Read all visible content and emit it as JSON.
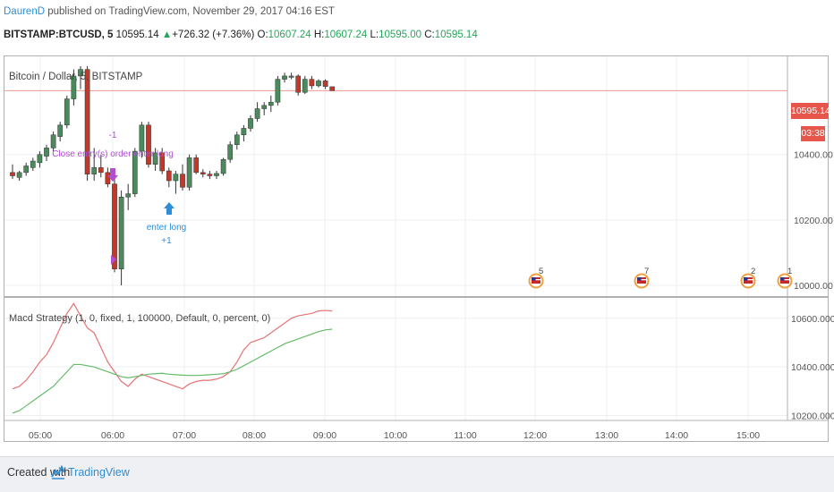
{
  "header": {
    "author": "DaurenD",
    "published": "published on TradingView.com, November 29, 2017 04:16 EST"
  },
  "symbol_bar": {
    "symbol": "BITSTAMP:BTCUSD, 5",
    "last": "10595.14",
    "change": "+726.32 (+7.36%)",
    "o_label": "O:",
    "o_value": "10607.24",
    "h_label": "H:",
    "h_value": "10607.24",
    "l_label": "L:",
    "l_value": "10595.00",
    "c_label": "C:",
    "c_value": "10595.14"
  },
  "price_pane": {
    "title": "Bitcoin / Dollar, 5, BITSTAMP",
    "price_tag": "10595.14",
    "countdown_tag": "03:38",
    "y_ticks": [
      "10400.00",
      "10200.00",
      "10000.00"
    ],
    "annotations": {
      "close_label_top": "-1",
      "close_label": "Close entry(s) order enter long",
      "entry_label": "enter long",
      "entry_label_qty": "+1"
    },
    "event_flags": [
      "5",
      "7",
      "2",
      "1"
    ]
  },
  "macd_pane": {
    "title": "Macd Strategy (1, 0, fixed, 1, 100000, Default, 0, percent, 0)",
    "y_ticks": [
      "10600.0000",
      "10400.0000",
      "10200.0000"
    ]
  },
  "x_axis": {
    "ticks": [
      "05:00",
      "06:00",
      "07:00",
      "08:00",
      "09:00",
      "10:00",
      "11:00",
      "12:00",
      "13:00",
      "14:00",
      "15:00"
    ]
  },
  "footer": {
    "created_with": "Created with",
    "brand": "TradingView"
  },
  "colors": {
    "up": "#4a8a5c",
    "down": "#c0392b",
    "macd_line": "#e57373",
    "signal_line": "#66bb6a",
    "accent": "#2f8ed8",
    "price_tag": "#e7564a"
  },
  "chart_data": {
    "type": "candlestick",
    "title": "Bitcoin / Dollar, 5, BITSTAMP",
    "ylim": [
      9970,
      10700
    ],
    "candles": [
      {
        "o": 10345,
        "h": 10370,
        "l": 10325,
        "c": 10335
      },
      {
        "o": 10330,
        "h": 10350,
        "l": 10320,
        "c": 10345
      },
      {
        "o": 10345,
        "h": 10375,
        "l": 10335,
        "c": 10365
      },
      {
        "o": 10360,
        "h": 10390,
        "l": 10350,
        "c": 10380
      },
      {
        "o": 10375,
        "h": 10410,
        "l": 10360,
        "c": 10400
      },
      {
        "o": 10395,
        "h": 10430,
        "l": 10380,
        "c": 10420
      },
      {
        "o": 10420,
        "h": 10470,
        "l": 10410,
        "c": 10460
      },
      {
        "o": 10455,
        "h": 10500,
        "l": 10440,
        "c": 10490
      },
      {
        "o": 10490,
        "h": 10580,
        "l": 10480,
        "c": 10570
      },
      {
        "o": 10570,
        "h": 10660,
        "l": 10550,
        "c": 10640
      },
      {
        "o": 10640,
        "h": 10670,
        "l": 10600,
        "c": 10660
      },
      {
        "o": 10660,
        "h": 10670,
        "l": 10320,
        "c": 10340
      },
      {
        "o": 10340,
        "h": 10420,
        "l": 10320,
        "c": 10360
      },
      {
        "o": 10360,
        "h": 10400,
        "l": 10330,
        "c": 10345
      },
      {
        "o": 10345,
        "h": 10360,
        "l": 10300,
        "c": 10310
      },
      {
        "o": 10310,
        "h": 10340,
        "l": 10040,
        "c": 10050
      },
      {
        "o": 10050,
        "h": 10290,
        "l": 10000,
        "c": 10270
      },
      {
        "o": 10270,
        "h": 10310,
        "l": 10230,
        "c": 10280
      },
      {
        "o": 10280,
        "h": 10420,
        "l": 10270,
        "c": 10410
      },
      {
        "o": 10410,
        "h": 10500,
        "l": 10390,
        "c": 10490
      },
      {
        "o": 10490,
        "h": 10500,
        "l": 10360,
        "c": 10370
      },
      {
        "o": 10370,
        "h": 10420,
        "l": 10350,
        "c": 10405
      },
      {
        "o": 10405,
        "h": 10420,
        "l": 10340,
        "c": 10350
      },
      {
        "o": 10350,
        "h": 10360,
        "l": 10300,
        "c": 10320
      },
      {
        "o": 10320,
        "h": 10350,
        "l": 10280,
        "c": 10340
      },
      {
        "o": 10340,
        "h": 10370,
        "l": 10290,
        "c": 10300
      },
      {
        "o": 10300,
        "h": 10400,
        "l": 10290,
        "c": 10390
      },
      {
        "o": 10390,
        "h": 10400,
        "l": 10340,
        "c": 10345
      },
      {
        "o": 10345,
        "h": 10355,
        "l": 10330,
        "c": 10340
      },
      {
        "o": 10340,
        "h": 10350,
        "l": 10325,
        "c": 10335
      },
      {
        "o": 10335,
        "h": 10350,
        "l": 10325,
        "c": 10342
      },
      {
        "o": 10342,
        "h": 10390,
        "l": 10335,
        "c": 10385
      },
      {
        "o": 10385,
        "h": 10440,
        "l": 10375,
        "c": 10430
      },
      {
        "o": 10430,
        "h": 10470,
        "l": 10415,
        "c": 10460
      },
      {
        "o": 10460,
        "h": 10490,
        "l": 10440,
        "c": 10480
      },
      {
        "o": 10480,
        "h": 10520,
        "l": 10470,
        "c": 10510
      },
      {
        "o": 10510,
        "h": 10560,
        "l": 10500,
        "c": 10540
      },
      {
        "o": 10540,
        "h": 10560,
        "l": 10520,
        "c": 10550
      },
      {
        "o": 10550,
        "h": 10580,
        "l": 10530,
        "c": 10560
      },
      {
        "o": 10560,
        "h": 10640,
        "l": 10550,
        "c": 10630
      },
      {
        "o": 10630,
        "h": 10650,
        "l": 10620,
        "c": 10640
      },
      {
        "o": 10640,
        "h": 10650,
        "l": 10630,
        "c": 10640
      },
      {
        "o": 10640,
        "h": 10645,
        "l": 10580,
        "c": 10590
      },
      {
        "o": 10590,
        "h": 10640,
        "l": 10585,
        "c": 10630
      },
      {
        "o": 10630,
        "h": 10640,
        "l": 10600,
        "c": 10610
      },
      {
        "o": 10610,
        "h": 10630,
        "l": 10605,
        "c": 10625
      },
      {
        "o": 10625,
        "h": 10630,
        "l": 10600,
        "c": 10608
      },
      {
        "o": 10607.24,
        "h": 10607.24,
        "l": 10595.0,
        "c": 10595.14
      }
    ],
    "macd_ylim": [
      10180,
      10680
    ],
    "series": [
      {
        "name": "",
        "color": "#e57373",
        "values": [
          10310,
          10320,
          10345,
          10380,
          10420,
          10450,
          10500,
          10560,
          10620,
          10660,
          10610,
          10560,
          10540,
          10480,
          10420,
          10380,
          10340,
          10320,
          10350,
          10370,
          10360,
          10350,
          10340,
          10330,
          10320,
          10310,
          10330,
          10340,
          10345,
          10345,
          10350,
          10360,
          10380,
          10420,
          10470,
          10500,
          10510,
          10520,
          10540,
          10560,
          10580,
          10600,
          10610,
          10615,
          10620,
          10630,
          10632,
          10630
        ]
      },
      {
        "name": "",
        "color": "#66bb6a",
        "values": [
          10210,
          10220,
          10240,
          10260,
          10280,
          10300,
          10320,
          10350,
          10380,
          10410,
          10410,
          10405,
          10400,
          10390,
          10380,
          10370,
          10360,
          10355,
          10360,
          10365,
          10370,
          10372,
          10374,
          10370,
          10368,
          10366,
          10365,
          10365,
          10366,
          10368,
          10370,
          10372,
          10380,
          10390,
          10405,
          10420,
          10435,
          10450,
          10465,
          10480,
          10495,
          10505,
          10515,
          10525,
          10535,
          10545,
          10552,
          10555
        ]
      }
    ],
    "x_ticks": [
      "05:00",
      "06:00",
      "07:00",
      "08:00",
      "09:00",
      "10:00",
      "11:00",
      "12:00",
      "13:00",
      "14:00",
      "15:00"
    ]
  }
}
